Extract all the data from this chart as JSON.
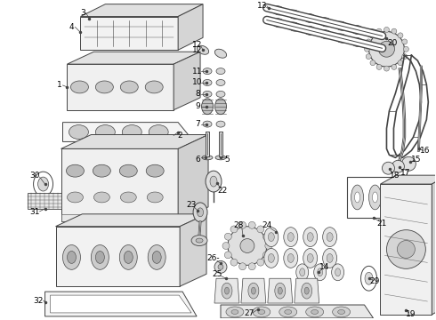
{
  "background_color": "#ffffff",
  "line_color": "#444444",
  "label_color": "#000000",
  "fig_width": 4.9,
  "fig_height": 3.6,
  "dpi": 100,
  "font_size": 6.5
}
